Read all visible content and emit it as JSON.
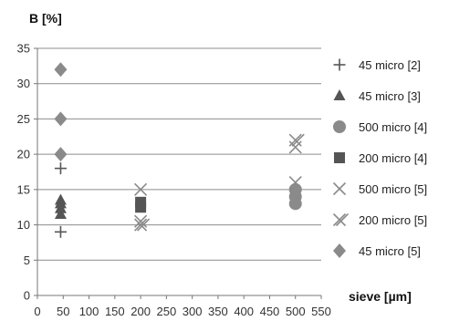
{
  "chart_data": {
    "type": "scatter",
    "ylabel": "B [%]",
    "xlabel": "sieve [µm]",
    "xlim": [
      0,
      550
    ],
    "ylim": [
      0,
      35
    ],
    "xticks": [
      "0",
      "50",
      "100",
      "150",
      "200",
      "250",
      "300",
      "350",
      "400",
      "450",
      "500",
      "550"
    ],
    "yticks": [
      "0",
      "5",
      "10",
      "15",
      "20",
      "25",
      "30",
      "35"
    ],
    "grid": "horizontal",
    "legend_position": "right",
    "series": [
      {
        "name": "45 micro [2]",
        "marker": "plus",
        "color": "#555555",
        "points": [
          [
            45,
            9
          ],
          [
            45,
            18
          ]
        ]
      },
      {
        "name": "45 micro [3]",
        "marker": "triangle",
        "color": "#555555",
        "points": [
          [
            45,
            11.5
          ],
          [
            45,
            12.3
          ],
          [
            45,
            13
          ],
          [
            45,
            13.5
          ]
        ]
      },
      {
        "name": "500 micro [4]",
        "marker": "circle",
        "color": "#8a8a8a",
        "points": [
          [
            500,
            13
          ],
          [
            500,
            14
          ],
          [
            500,
            15
          ]
        ]
      },
      {
        "name": "200 micro [4]",
        "marker": "square",
        "color": "#555555",
        "points": [
          [
            200,
            12.5
          ],
          [
            200,
            13.2
          ]
        ]
      },
      {
        "name": "500 micro [5]",
        "marker": "x",
        "color": "#8a8a8a",
        "points": [
          [
            500,
            16
          ],
          [
            500,
            21
          ],
          [
            200,
            15
          ],
          [
            200,
            10.5
          ]
        ]
      },
      {
        "name": "200 micro [5]",
        "marker": "x-double",
        "color": "#8a8a8a",
        "points": [
          [
            500,
            22
          ],
          [
            200,
            10
          ]
        ]
      },
      {
        "name": "45 micro [5]",
        "marker": "diamond",
        "color": "#8a8a8a",
        "points": [
          [
            45,
            20
          ],
          [
            45,
            25
          ],
          [
            45,
            32
          ]
        ]
      }
    ]
  }
}
